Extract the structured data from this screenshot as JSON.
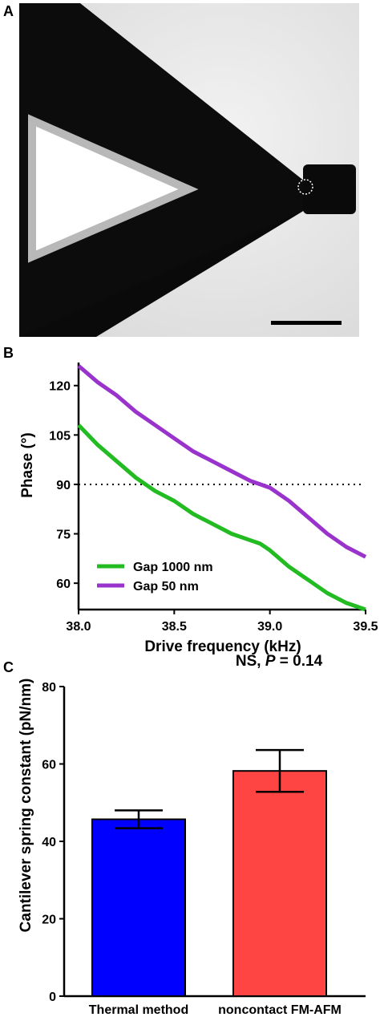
{
  "panels": {
    "a_label": "A",
    "b_label": "B",
    "c_label": "C"
  },
  "chart_data": [
    {
      "type": "line",
      "panel": "B",
      "xlabel": "Drive frequency (kHz)",
      "ylabel": "Phase (°)",
      "xlim": [
        38.0,
        39.5
      ],
      "ylim": [
        52,
        127
      ],
      "xticks": [
        "38.0",
        "38.5",
        "39.0",
        "39.5"
      ],
      "xtick_values": [
        38.0,
        38.5,
        39.0,
        39.5
      ],
      "yticks": [
        "60",
        "75",
        "90",
        "105",
        "120"
      ],
      "ytick_values": [
        60,
        75,
        90,
        105,
        120
      ],
      "reference_line": {
        "y": 90,
        "style": "dotted"
      },
      "legend_position": "bottom-left",
      "series": [
        {
          "name": "Gap 1000 nm",
          "color": "#22bb22",
          "x": [
            38.0,
            38.1,
            38.2,
            38.3,
            38.4,
            38.5,
            38.6,
            38.7,
            38.8,
            38.9,
            38.95,
            39.0,
            39.1,
            39.2,
            39.3,
            39.4,
            39.5
          ],
          "y": [
            108,
            102,
            97,
            92,
            88,
            85,
            81,
            78,
            75,
            73,
            72,
            70,
            65,
            61,
            57,
            54,
            52
          ]
        },
        {
          "name": "Gap 50 nm",
          "color": "#9933cc",
          "x": [
            38.0,
            38.1,
            38.2,
            38.3,
            38.4,
            38.5,
            38.6,
            38.7,
            38.8,
            38.9,
            38.95,
            39.0,
            39.1,
            39.2,
            39.3,
            39.4,
            39.5
          ],
          "y": [
            126,
            121,
            117,
            112,
            108,
            104,
            100,
            97,
            94,
            91,
            90,
            89,
            85,
            80,
            75,
            71,
            68
          ]
        }
      ]
    },
    {
      "type": "bar",
      "panel": "C",
      "ylabel": "Cantilever spring constant (pN/nm)",
      "ylim": [
        0,
        80
      ],
      "yticks": [
        "0",
        "20",
        "40",
        "60",
        "80"
      ],
      "ytick_values": [
        0,
        20,
        40,
        60,
        80
      ],
      "categories": [
        "Thermal method",
        "noncontact FM-AFM"
      ],
      "values": [
        45.7,
        58.2
      ],
      "errors": [
        2.3,
        5.4
      ],
      "colors": [
        "#0000ff",
        "#ff4444"
      ],
      "annotation": {
        "prefix": "NS, ",
        "p_symbol": "P",
        "suffix": " = 0.14"
      }
    }
  ]
}
